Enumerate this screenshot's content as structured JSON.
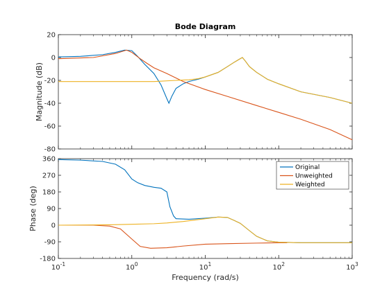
{
  "chart_data": {
    "type": "line",
    "title": "Bode Diagram",
    "xlabel": "Frequency  (rad/s)",
    "xscale": "log",
    "xlim": [
      0.1,
      1000
    ],
    "x_ticks": [
      {
        "value": 0.1,
        "base": "10",
        "exp": "-1"
      },
      {
        "value": 1,
        "base": "10",
        "exp": "0"
      },
      {
        "value": 10,
        "base": "10",
        "exp": "1"
      },
      {
        "value": 100,
        "base": "10",
        "exp": "2"
      },
      {
        "value": 1000,
        "base": "10",
        "exp": "3"
      }
    ],
    "legend_position": "top-right",
    "panels": [
      {
        "name": "magnitude",
        "ylabel": "Magnitude (dB)",
        "ylim": [
          -80,
          20
        ],
        "yticks": [
          20,
          0,
          -20,
          -40,
          -60,
          -80
        ],
        "series": [
          {
            "name": "Original",
            "color": "#0072bd",
            "points": [
              [
                0.1,
                0.5
              ],
              [
                0.2,
                1
              ],
              [
                0.4,
                2.5
              ],
              [
                0.6,
                4.5
              ],
              [
                0.8,
                6.5
              ],
              [
                1.0,
                6
              ],
              [
                1.2,
                1
              ],
              [
                1.5,
                -6
              ],
              [
                2.0,
                -14
              ],
              [
                2.5,
                -24
              ],
              [
                3.0,
                -36
              ],
              [
                3.2,
                -40
              ],
              [
                3.5,
                -34
              ],
              [
                4.0,
                -27
              ],
              [
                5.0,
                -23
              ],
              [
                6.0,
                -21
              ],
              [
                8.0,
                -19
              ],
              [
                10,
                -17
              ],
              [
                15,
                -13
              ],
              [
                20,
                -8
              ],
              [
                25,
                -4
              ],
              [
                30,
                -1
              ],
              [
                32,
                0
              ],
              [
                35,
                -3
              ],
              [
                40,
                -8
              ],
              [
                50,
                -13
              ],
              [
                70,
                -19
              ],
              [
                100,
                -23
              ],
              [
                200,
                -30
              ],
              [
                500,
                -35
              ],
              [
                1000,
                -40
              ]
            ]
          },
          {
            "name": "Unweighted",
            "color": "#d95319",
            "points": [
              [
                0.1,
                -1
              ],
              [
                0.3,
                0
              ],
              [
                0.6,
                3.5
              ],
              [
                0.85,
                6.5
              ],
              [
                1.0,
                4.5
              ],
              [
                1.3,
                -1
              ],
              [
                1.6,
                -5
              ],
              [
                2,
                -9
              ],
              [
                3,
                -14
              ],
              [
                5,
                -21
              ],
              [
                10,
                -28
              ],
              [
                20,
                -34
              ],
              [
                50,
                -42
              ],
              [
                100,
                -48
              ],
              [
                200,
                -54
              ],
              [
                500,
                -63
              ],
              [
                1000,
                -72
              ]
            ]
          },
          {
            "name": "Weighted",
            "color": "#edb120",
            "points": [
              [
                0.1,
                -21
              ],
              [
                1,
                -21
              ],
              [
                2,
                -21
              ],
              [
                4,
                -20
              ],
              [
                6,
                -19.5
              ],
              [
                8,
                -18.5
              ],
              [
                10,
                -17
              ],
              [
                15,
                -13
              ],
              [
                20,
                -8
              ],
              [
                25,
                -4
              ],
              [
                30,
                -1
              ],
              [
                32,
                0
              ],
              [
                35,
                -3
              ],
              [
                40,
                -8
              ],
              [
                50,
                -13
              ],
              [
                70,
                -19
              ],
              [
                100,
                -23
              ],
              [
                200,
                -30
              ],
              [
                500,
                -35
              ],
              [
                1000,
                -40
              ]
            ]
          }
        ]
      },
      {
        "name": "phase",
        "ylabel": "Phase (deg)",
        "ylim": [
          -180,
          360
        ],
        "yticks": [
          360,
          270,
          180,
          90,
          0,
          -90,
          -180
        ],
        "series": [
          {
            "name": "Original",
            "color": "#0072bd",
            "points": [
              [
                0.1,
                355
              ],
              [
                0.2,
                352
              ],
              [
                0.4,
                345
              ],
              [
                0.6,
                330
              ],
              [
                0.8,
                300
              ],
              [
                1.0,
                250
              ],
              [
                1.2,
                230
              ],
              [
                1.5,
                215
              ],
              [
                2,
                205
              ],
              [
                2.5,
                200
              ],
              [
                3,
                180
              ],
              [
                3.3,
                100
              ],
              [
                3.7,
                50
              ],
              [
                4,
                35
              ],
              [
                6,
                32
              ],
              [
                10,
                38
              ],
              [
                15,
                44
              ],
              [
                20,
                42
              ],
              [
                25,
                25
              ],
              [
                30,
                10
              ],
              [
                40,
                -30
              ],
              [
                50,
                -60
              ],
              [
                70,
                -85
              ],
              [
                100,
                -92
              ],
              [
                200,
                -95
              ],
              [
                500,
                -95
              ],
              [
                1000,
                -95
              ]
            ]
          },
          {
            "name": "Unweighted",
            "color": "#d95319",
            "points": [
              [
                0.1,
                0
              ],
              [
                0.3,
                0
              ],
              [
                0.5,
                -5
              ],
              [
                0.7,
                -20
              ],
              [
                1,
                -75
              ],
              [
                1.3,
                -115
              ],
              [
                1.8,
                -125
              ],
              [
                3,
                -122
              ],
              [
                5,
                -113
              ],
              [
                10,
                -103
              ],
              [
                20,
                -100
              ],
              [
                50,
                -97
              ],
              [
                100,
                -95
              ],
              [
                130,
                -95
              ]
            ]
          },
          {
            "name": "Weighted",
            "color": "#edb120",
            "points": [
              [
                0.1,
                0
              ],
              [
                0.5,
                2
              ],
              [
                1,
                5
              ],
              [
                2,
                8
              ],
              [
                3,
                12
              ],
              [
                5,
                20
              ],
              [
                10,
                35
              ],
              [
                15,
                44
              ],
              [
                20,
                42
              ],
              [
                25,
                25
              ],
              [
                30,
                10
              ],
              [
                40,
                -30
              ],
              [
                50,
                -60
              ],
              [
                70,
                -85
              ],
              [
                100,
                -92
              ],
              [
                200,
                -95
              ],
              [
                500,
                -95
              ],
              [
                1000,
                -95
              ]
            ]
          }
        ]
      }
    ]
  }
}
